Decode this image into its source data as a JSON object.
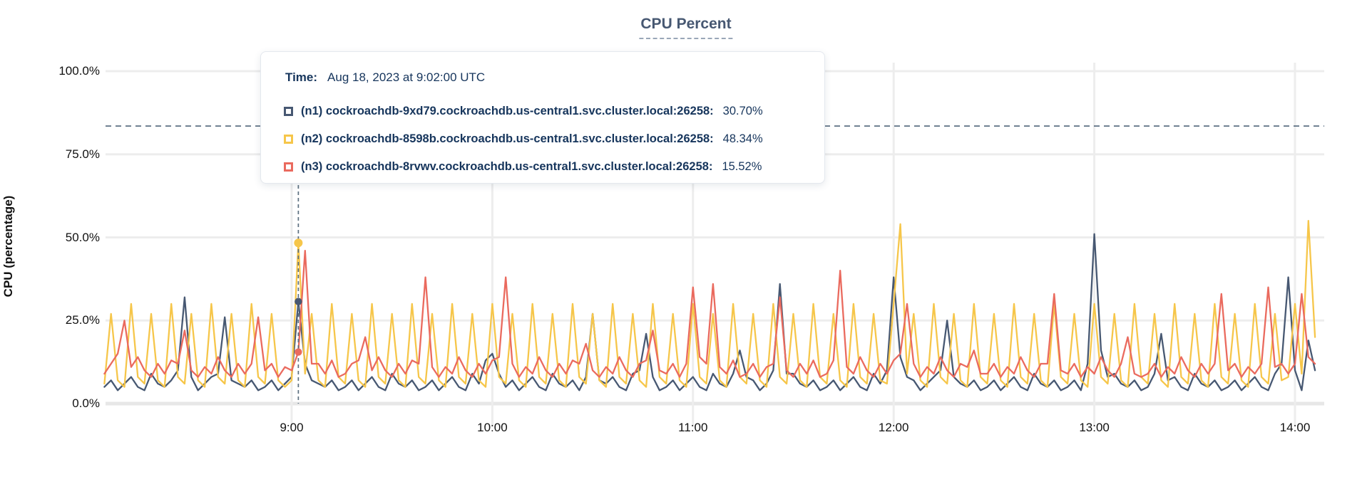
{
  "page": {
    "background": "#ffffff"
  },
  "chart_data": {
    "type": "line",
    "title": "CPU Percent",
    "ylabel": "CPU (percentage)",
    "xlabel": "",
    "grid": true,
    "ylim": [
      0,
      100
    ],
    "y_ticks": [
      {
        "label": "0.0%",
        "value": 0
      },
      {
        "label": "25.0%",
        "value": 25
      },
      {
        "label": "50.0%",
        "value": 50
      },
      {
        "label": "75.0%",
        "value": 75
      },
      {
        "label": "100.0%",
        "value": 100
      }
    ],
    "x_ticks": [
      {
        "label": "9:00",
        "minute": 540
      },
      {
        "label": "10:00",
        "minute": 600
      },
      {
        "label": "11:00",
        "minute": 660
      },
      {
        "label": "12:00",
        "minute": 720
      },
      {
        "label": "13:00",
        "minute": 780
      },
      {
        "label": "14:00",
        "minute": 840
      }
    ],
    "x_range_minutes": [
      484,
      846
    ],
    "sample_step_minutes": 2,
    "threshold_line_percent": 83.5,
    "crosshair": {
      "minute": 542,
      "time": "9:02"
    },
    "series": [
      {
        "id": "n1",
        "name": "(n1) cockroachdb-9xd79.cockroachdb.us-central1.svc.cluster.local:26258",
        "color": "#475872",
        "value_at_crosshair_percent": 30.7,
        "base_cycle": [
          5,
          7,
          4,
          6,
          8,
          5,
          4,
          9,
          6,
          5,
          7,
          4
        ],
        "peak_overrides": {
          "506": 10,
          "508": 32,
          "510": 8,
          "518": 9,
          "520": 26,
          "522": 7,
          "540": 8,
          "542": 30.7,
          "544": 12,
          "546": 7,
          "598": 13,
          "600": 15,
          "602": 9,
          "628": 8,
          "630": 27,
          "632": 7,
          "644": 10,
          "646": 21,
          "648": 8,
          "672": 9,
          "674": 16,
          "676": 8,
          "684": 10,
          "686": 36,
          "688": 9,
          "718": 10,
          "720": 38,
          "722": 14,
          "724": 8,
          "734": 10,
          "736": 25,
          "738": 8,
          "778": 12,
          "780": 51,
          "782": 16,
          "784": 8,
          "798": 9,
          "800": 21,
          "802": 7,
          "836": 12,
          "838": 38,
          "840": 10,
          "844": 19,
          "846": 10
        }
      },
      {
        "id": "n2",
        "name": "(n2) cockroachdb-8598b.cockroachdb.us-central1.svc.cluster.local:26258",
        "color": "#F6C64A",
        "value_at_crosshair_percent": 48.34,
        "base_cycle": [
          6,
          27,
          7,
          5,
          30,
          8
        ],
        "peak_overrides": {
          "540": 7,
          "542": 48.34,
          "544": 9,
          "718": 6,
          "720": 30,
          "722": 54,
          "724": 9,
          "838": 8,
          "840": 30,
          "842": 9,
          "844": 55,
          "846": 20
        }
      },
      {
        "id": "n3",
        "name": "(n3) cockroachdb-8rvwv.cockroachdb.us-central1.svc.cluster.local:26258",
        "color": "#EA6A5E",
        "value_at_crosshair_percent": 15.52,
        "base_cycle": [
          9,
          12,
          8,
          11,
          9,
          14,
          10,
          8,
          12,
          9,
          13,
          8
        ],
        "peak_overrides": {
          "488": 15,
          "490": 25,
          "492": 11,
          "506": 12,
          "508": 22,
          "510": 10,
          "528": 12,
          "530": 26,
          "532": 10,
          "540": 10,
          "542": 15.52,
          "544": 46,
          "546": 12,
          "560": 13,
          "562": 20,
          "564": 10,
          "578": 12,
          "580": 38,
          "582": 11,
          "602": 14,
          "604": 38,
          "606": 12,
          "626": 12,
          "628": 18,
          "630": 10,
          "646": 13,
          "648": 22,
          "650": 10,
          "658": 12,
          "660": 35,
          "662": 14,
          "664": 12,
          "666": 36,
          "668": 11,
          "684": 12,
          "686": 32,
          "688": 10,
          "702": 13,
          "704": 40,
          "706": 11,
          "722": 15,
          "724": 30,
          "726": 12,
          "742": 11,
          "744": 16,
          "746": 9,
          "766": 12,
          "768": 33,
          "770": 10,
          "788": 12,
          "790": 20,
          "792": 9,
          "816": 12,
          "818": 33,
          "820": 10,
          "830": 12,
          "832": 35,
          "834": 11,
          "840": 12,
          "842": 33,
          "844": 14
        }
      }
    ],
    "colors": {
      "grid": "#ededed",
      "baseline_grid": "#e7e7e7",
      "crosshair": "#5c7080",
      "threshold": "#51657a",
      "axis_text": "#111111",
      "title_text": "#475872",
      "tooltip_text": "#16355c"
    }
  },
  "tooltip": {
    "time_label": "Time:",
    "time_value": "Aug 18, 2023 at 9:02:00 UTC",
    "rows": [
      {
        "label": "(n1) cockroachdb-9xd79.cockroachdb.us-central1.svc.cluster.local:26258:",
        "value": "30.70%",
        "color": "#475872"
      },
      {
        "label": "(n2) cockroachdb-8598b.cockroachdb.us-central1.svc.cluster.local:26258:",
        "value": "48.34%",
        "color": "#F6C64A"
      },
      {
        "label": "(n3) cockroachdb-8rvwv.cockroachdb.us-central1.svc.cluster.local:26258:",
        "value": "15.52%",
        "color": "#EA6A5E"
      }
    ]
  }
}
